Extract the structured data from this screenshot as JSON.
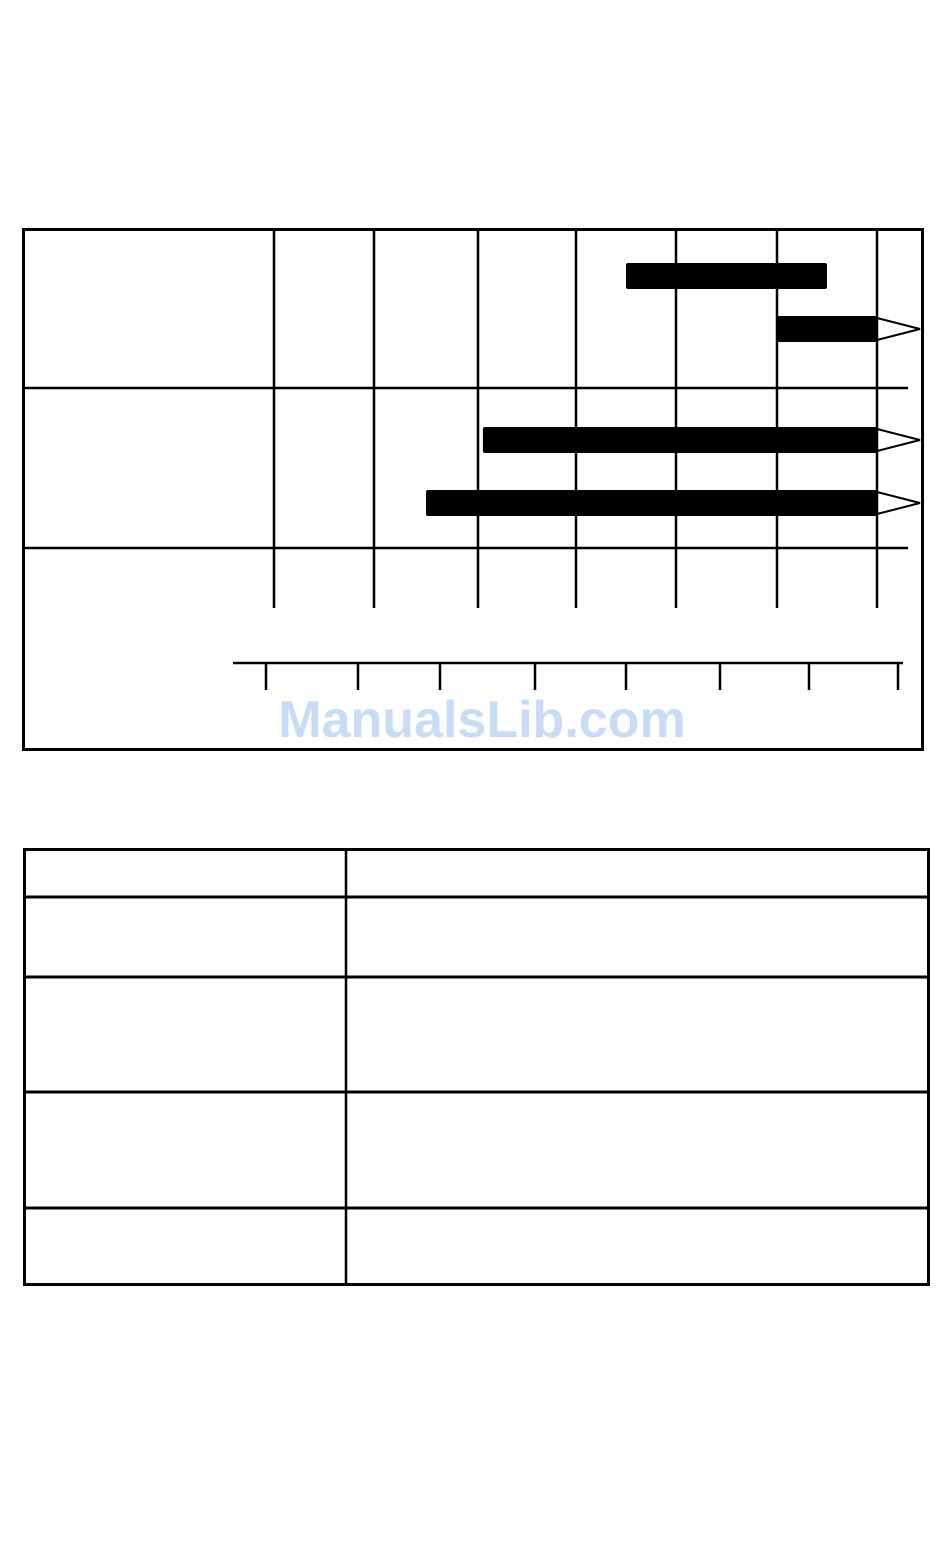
{
  "watermark": {
    "text": "ManualsLib.com",
    "color": "#c8dcf5"
  },
  "chart_data": {
    "type": "gantt",
    "title": "",
    "grid_columns": 6,
    "row_groups": 2,
    "bars": [
      {
        "group": 0,
        "start": 3.5,
        "end": 5.5,
        "continues": false
      },
      {
        "group": 0,
        "start": 5.0,
        "end": 6.0,
        "continues": true
      },
      {
        "group": 1,
        "start": 2.05,
        "end": 6.0,
        "continues": true
      },
      {
        "group": 1,
        "start": 1.5,
        "end": 6.0,
        "continues": true
      }
    ],
    "axis_ticks": 8,
    "bar_color": "#000000"
  },
  "table": {
    "rows": 5,
    "columns": 2,
    "cells": [
      [
        "",
        ""
      ],
      [
        "",
        ""
      ],
      [
        "",
        ""
      ],
      [
        "",
        ""
      ],
      [
        "",
        ""
      ]
    ]
  }
}
